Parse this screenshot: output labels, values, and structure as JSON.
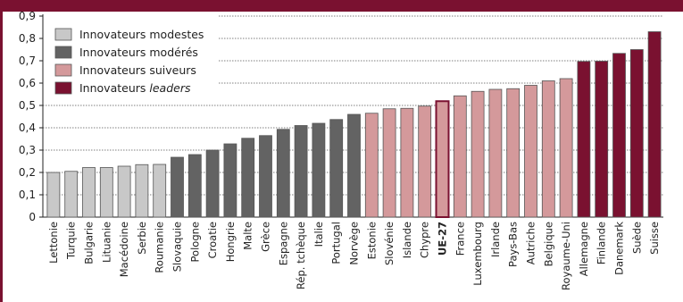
{
  "colors": {
    "frame": "#7a1130",
    "modestes": "#c8c8c8",
    "moderes": "#636363",
    "suiveurs": "#d4999b",
    "leaders": "#7a1130",
    "highlight_label": "#7a1130"
  },
  "chart_data": {
    "type": "bar",
    "title": "",
    "xlabel": "",
    "ylabel": "",
    "ylim": [
      0,
      0.9
    ],
    "yticks": [
      "0",
      "0,1",
      "0,2",
      "0,3",
      "0,4",
      "0,5",
      "0,6",
      "0,7",
      "0,8",
      "0,9"
    ],
    "grid": "horizontal dotted lines, upper right area",
    "legend_position": "top-left",
    "legend": [
      {
        "key": "modestes",
        "label": "Innovateurs modestes",
        "italic": ""
      },
      {
        "key": "moderes",
        "label": "Innovateurs modérés",
        "italic": ""
      },
      {
        "key": "suiveurs",
        "label": "Innovateurs suiveurs",
        "italic": ""
      },
      {
        "key": "leaders",
        "label": "Innovateurs ",
        "italic": "leaders"
      }
    ],
    "highlight": "UE-27",
    "categories": [
      "Lettonie",
      "Turquie",
      "Bulgarie",
      "Lituanie",
      "Macédoine",
      "Serbie",
      "Roumanie",
      "Slovaquie",
      "Pologne",
      "Croatie",
      "Hongrie",
      "Malte",
      "Grèce",
      "Espagne",
      "Rép. tchèque",
      "Italie",
      "Portugal",
      "Norvège",
      "Estonie",
      "Slovénie",
      "Islande",
      "Chypre",
      "UE-27",
      "France",
      "Luxembourg",
      "Irlande",
      "Pays-Bas",
      "Autriche",
      "Belgique",
      "Royaume-Uni",
      "Allemagne",
      "Finlande",
      "Danemark",
      "Suède",
      "Suisse"
    ],
    "values": [
      0.2,
      0.205,
      0.222,
      0.222,
      0.228,
      0.235,
      0.236,
      0.268,
      0.28,
      0.3,
      0.328,
      0.353,
      0.365,
      0.393,
      0.41,
      0.42,
      0.437,
      0.46,
      0.465,
      0.485,
      0.487,
      0.497,
      0.519,
      0.543,
      0.563,
      0.572,
      0.575,
      0.59,
      0.61,
      0.62,
      0.697,
      0.698,
      0.733,
      0.75,
      0.83
    ],
    "groups": [
      "modestes",
      "modestes",
      "modestes",
      "modestes",
      "modestes",
      "modestes",
      "modestes",
      "moderes",
      "moderes",
      "moderes",
      "moderes",
      "moderes",
      "moderes",
      "moderes",
      "moderes",
      "moderes",
      "moderes",
      "moderes",
      "suiveurs",
      "suiveurs",
      "suiveurs",
      "suiveurs",
      "suiveurs",
      "suiveurs",
      "suiveurs",
      "suiveurs",
      "suiveurs",
      "suiveurs",
      "suiveurs",
      "suiveurs",
      "leaders",
      "leaders",
      "leaders",
      "leaders",
      "leaders"
    ]
  }
}
